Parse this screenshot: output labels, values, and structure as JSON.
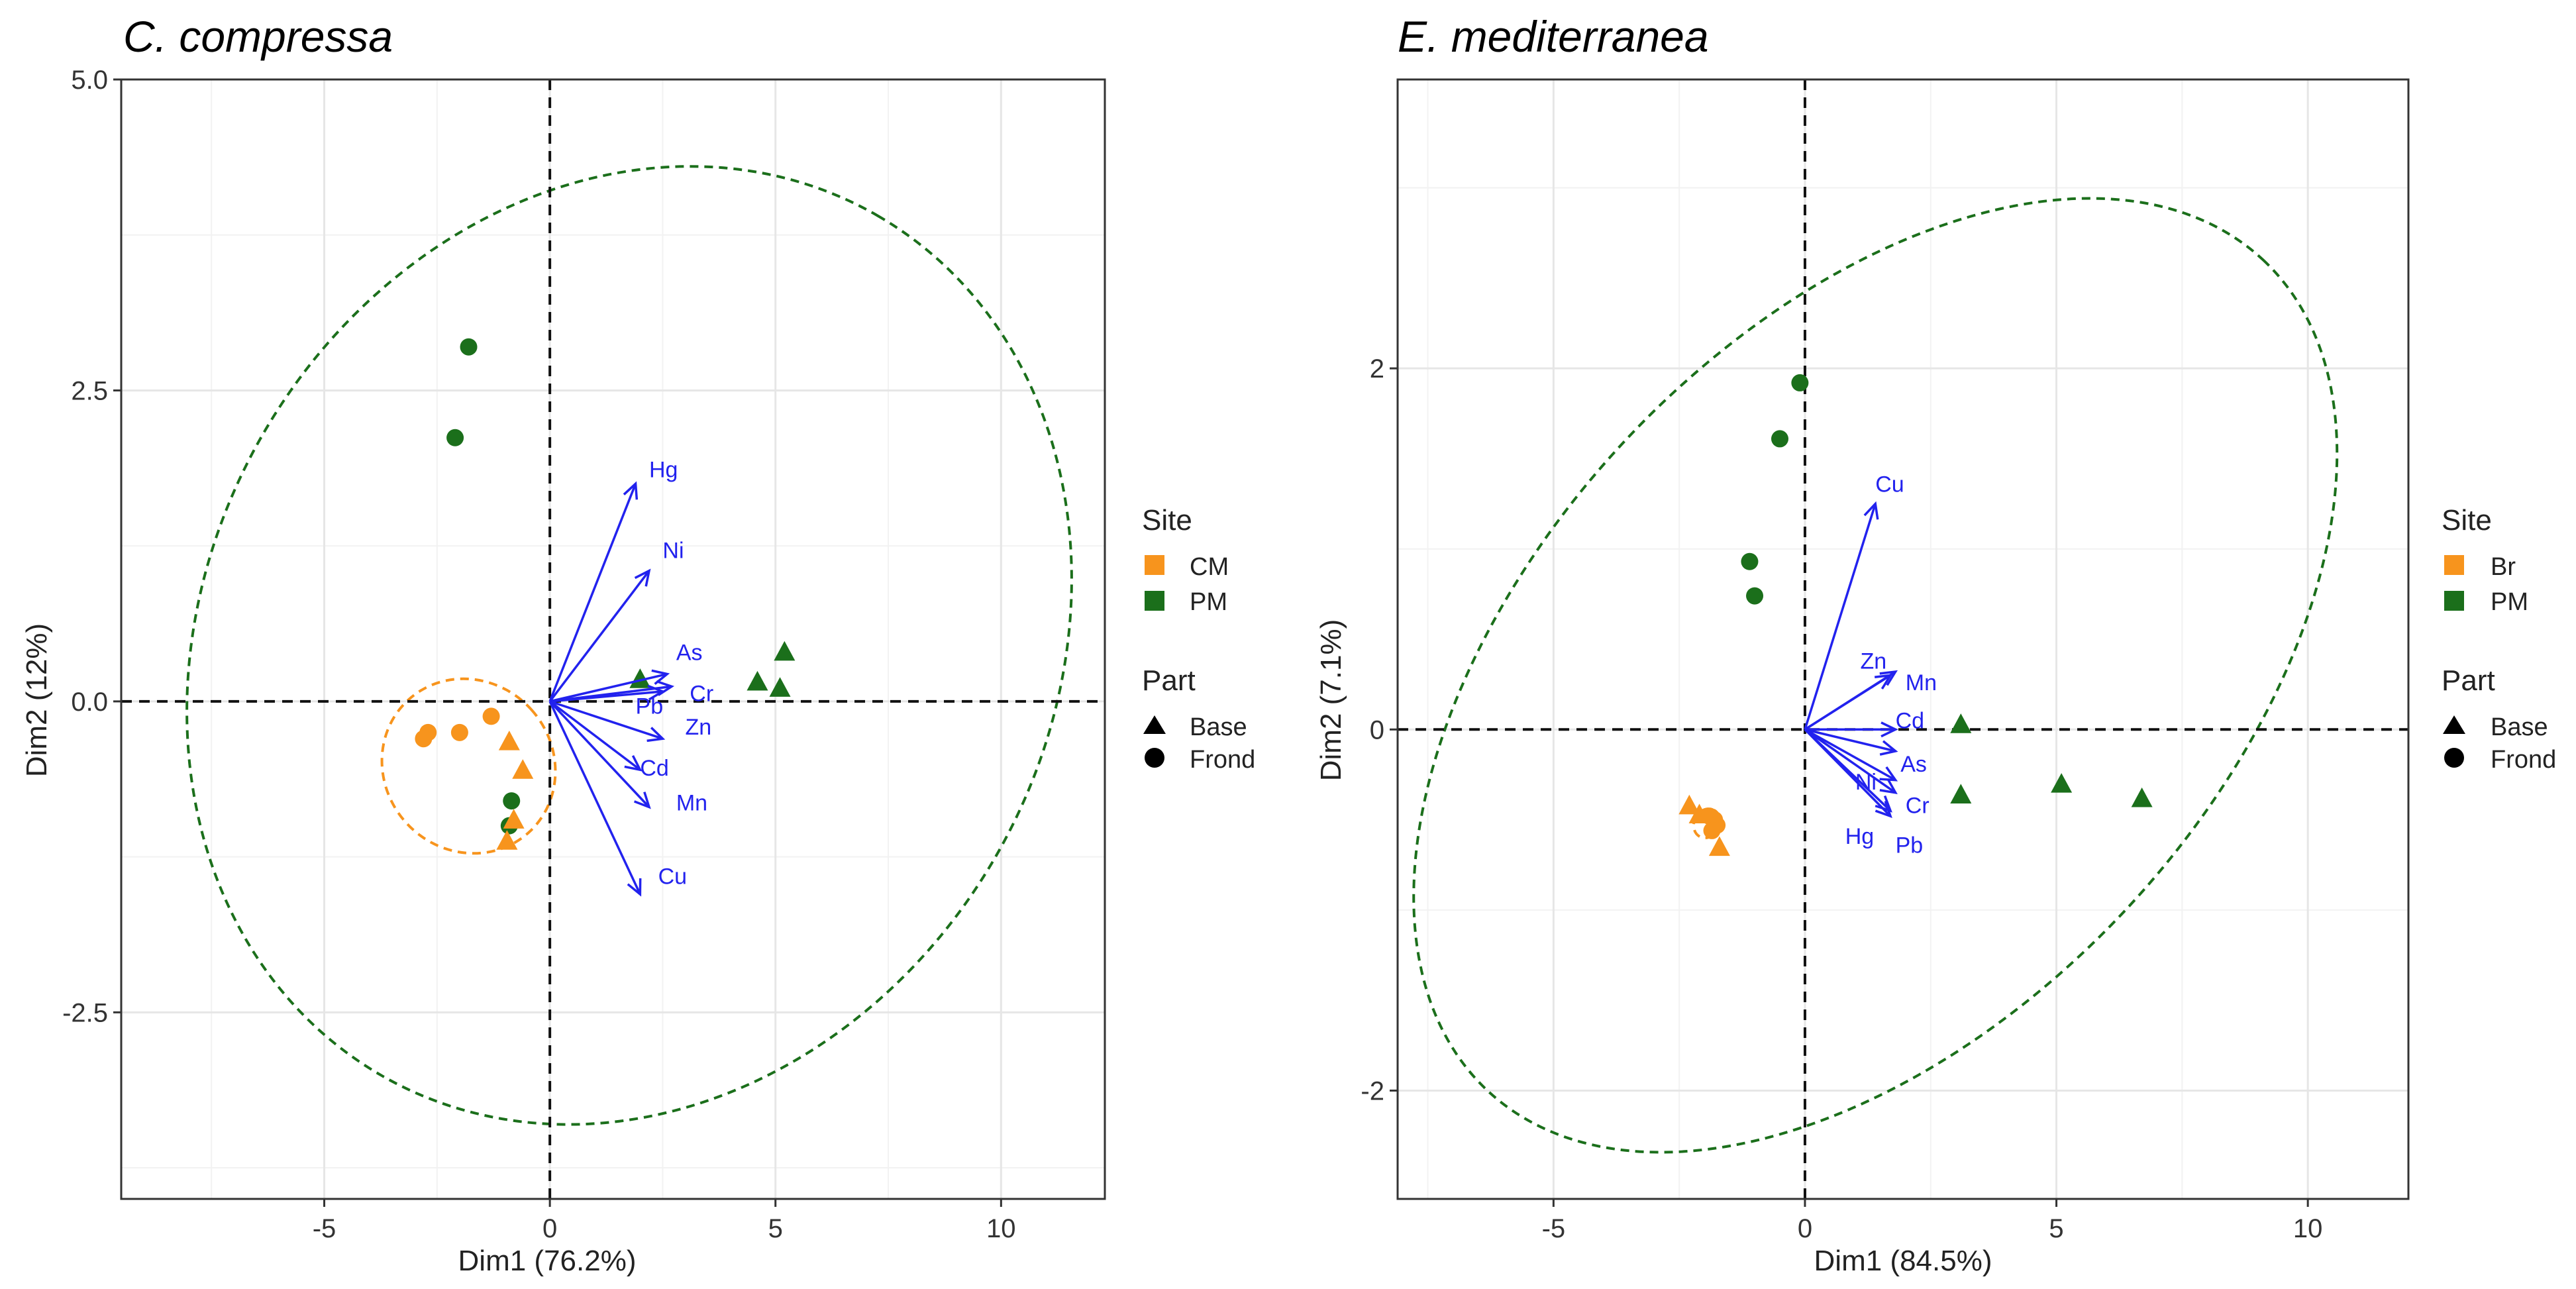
{
  "chart_data": [
    {
      "type": "scatter",
      "subtype": "pca-biplot",
      "title": "C. compressa",
      "xlabel": "Dim1 (76.2%)",
      "ylabel": "Dim2 (12%)",
      "xlim": [
        -9.5,
        12.3
      ],
      "ylim": [
        -4.0,
        5.0
      ],
      "xticks": [
        -5,
        0,
        5,
        10
      ],
      "xtick_labels": [
        "-5",
        "0",
        "5",
        "10"
      ],
      "yticks": [
        -2.5,
        0.0,
        2.5,
        5.0
      ],
      "ytick_labels": [
        "-2.5",
        "0.0",
        "2.5",
        "5.0"
      ],
      "xminor": [
        -7.5,
        -2.5,
        2.5,
        7.5
      ],
      "yminor": [
        -3.75,
        -1.25,
        1.25,
        3.75
      ],
      "grid": true,
      "legend": {
        "site_title": "Site",
        "site_items": [
          {
            "label": "CM",
            "color": "#F7941D"
          },
          {
            "label": "PM",
            "color": "#1B6F1B"
          }
        ],
        "part_title": "Part",
        "part_items": [
          {
            "label": "Base",
            "shape": "triangle"
          },
          {
            "label": "Frond",
            "shape": "circle"
          }
        ]
      },
      "points": [
        {
          "x": -1.8,
          "y": 2.85,
          "site": "PM",
          "part": "Frond"
        },
        {
          "x": -2.1,
          "y": 2.12,
          "site": "PM",
          "part": "Frond"
        },
        {
          "x": -0.85,
          "y": -0.8,
          "site": "PM",
          "part": "Frond"
        },
        {
          "x": -0.9,
          "y": -1.0,
          "site": "PM",
          "part": "Frond"
        },
        {
          "x": 2.0,
          "y": 0.18,
          "site": "PM",
          "part": "Base"
        },
        {
          "x": 4.6,
          "y": 0.16,
          "site": "PM",
          "part": "Base"
        },
        {
          "x": 5.2,
          "y": 0.4,
          "site": "PM",
          "part": "Base"
        },
        {
          "x": 5.1,
          "y": 0.11,
          "site": "PM",
          "part": "Base"
        },
        {
          "x": -2.7,
          "y": -0.25,
          "site": "CM",
          "part": "Frond"
        },
        {
          "x": -2.8,
          "y": -0.3,
          "site": "CM",
          "part": "Frond"
        },
        {
          "x": -2.0,
          "y": -0.25,
          "site": "CM",
          "part": "Frond"
        },
        {
          "x": -1.3,
          "y": -0.12,
          "site": "CM",
          "part": "Frond"
        },
        {
          "x": -0.9,
          "y": -0.32,
          "site": "CM",
          "part": "Base"
        },
        {
          "x": -0.6,
          "y": -0.55,
          "site": "CM",
          "part": "Base"
        },
        {
          "x": -0.95,
          "y": -1.12,
          "site": "CM",
          "part": "Base"
        },
        {
          "x": -0.8,
          "y": -0.95,
          "site": "CM",
          "part": "Base"
        }
      ],
      "arrows": [
        {
          "label": "Hg",
          "x": 1.9,
          "y": 1.75,
          "lx": 2.2,
          "ly": 1.85
        },
        {
          "label": "Ni",
          "x": 2.2,
          "y": 1.05,
          "lx": 2.5,
          "ly": 1.2
        },
        {
          "label": "As",
          "x": 2.6,
          "y": 0.22,
          "lx": 2.8,
          "ly": 0.38
        },
        {
          "label": "Cr",
          "x": 2.7,
          "y": 0.12,
          "lx": 3.1,
          "ly": 0.05
        },
        {
          "label": "Pb",
          "x": 2.5,
          "y": 0.08,
          "lx": 1.9,
          "ly": -0.05
        },
        {
          "label": "Zn",
          "x": 2.5,
          "y": -0.3,
          "lx": 3.0,
          "ly": -0.22
        },
        {
          "label": "Cd",
          "x": 2.0,
          "y": -0.55,
          "lx": 2.0,
          "ly": -0.55
        },
        {
          "label": "Mn",
          "x": 2.2,
          "y": -0.85,
          "lx": 2.8,
          "ly": -0.83
        },
        {
          "label": "Cu",
          "x": 2.0,
          "y": -1.55,
          "lx": 2.4,
          "ly": -1.42
        }
      ],
      "ellipses": [
        {
          "site": "PM",
          "cx": 1.76,
          "cy": 0.45,
          "rx": 11.0,
          "ry": 3.4,
          "angle": -60
        },
        {
          "site": "CM",
          "cx": -1.8,
          "cy": -0.52,
          "rx": 1.87,
          "ry": 0.72,
          "angle": -42
        }
      ]
    },
    {
      "type": "scatter",
      "subtype": "pca-biplot",
      "title": "E. mediterranea",
      "xlabel": "Dim1 (84.5%)",
      "ylabel": "Dim2 (7.1%)",
      "xlim": [
        -8.1,
        12.0
      ],
      "ylim": [
        -2.6,
        3.6
      ],
      "xticks": [
        -5,
        0,
        5,
        10
      ],
      "xtick_labels": [
        "-5",
        "0",
        "5",
        "10"
      ],
      "yticks": [
        -2,
        0,
        2
      ],
      "ytick_labels": [
        "-2",
        "0",
        "2"
      ],
      "xminor": [
        -7.5,
        -2.5,
        2.5,
        7.5
      ],
      "yminor": [
        -1,
        1,
        3
      ],
      "grid": true,
      "legend": {
        "site_title": "Site",
        "site_items": [
          {
            "label": "Br",
            "color": "#F7941D"
          },
          {
            "label": "PM",
            "color": "#1B6F1B"
          }
        ],
        "part_title": "Part",
        "part_items": [
          {
            "label": "Base",
            "shape": "triangle"
          },
          {
            "label": "Frond",
            "shape": "circle"
          }
        ]
      },
      "points": [
        {
          "x": -0.1,
          "y": 1.92,
          "site": "PM",
          "part": "Frond"
        },
        {
          "x": -0.5,
          "y": 1.61,
          "site": "PM",
          "part": "Frond"
        },
        {
          "x": -1.1,
          "y": 0.93,
          "site": "PM",
          "part": "Frond"
        },
        {
          "x": -1.0,
          "y": 0.74,
          "site": "PM",
          "part": "Frond"
        },
        {
          "x": 3.1,
          "y": 0.03,
          "site": "PM",
          "part": "Base"
        },
        {
          "x": 3.1,
          "y": -0.36,
          "site": "PM",
          "part": "Base"
        },
        {
          "x": 5.1,
          "y": -0.3,
          "site": "PM",
          "part": "Base"
        },
        {
          "x": 6.7,
          "y": -0.38,
          "site": "PM",
          "part": "Base"
        },
        {
          "x": -2.3,
          "y": -0.42,
          "site": "Br",
          "part": "Base"
        },
        {
          "x": -2.1,
          "y": -0.47,
          "site": "Br",
          "part": "Base"
        },
        {
          "x": -1.7,
          "y": -0.65,
          "site": "Br",
          "part": "Base"
        },
        {
          "x": -1.9,
          "y": -0.48,
          "site": "Br",
          "part": "Frond"
        },
        {
          "x": -1.8,
          "y": -0.5,
          "site": "Br",
          "part": "Frond"
        },
        {
          "x": -1.75,
          "y": -0.53,
          "site": "Br",
          "part": "Frond"
        },
        {
          "x": -1.85,
          "y": -0.56,
          "site": "Br",
          "part": "Frond"
        }
      ],
      "arrows": [
        {
          "label": "Cu",
          "x": 1.4,
          "y": 1.25,
          "lx": 1.4,
          "ly": 1.35
        },
        {
          "label": "Zn",
          "x": 1.7,
          "y": 0.3,
          "lx": 1.1,
          "ly": 0.37
        },
        {
          "label": "Mn",
          "x": 1.8,
          "y": 0.32,
          "lx": 2.0,
          "ly": 0.25
        },
        {
          "label": "Cd",
          "x": 1.8,
          "y": 0.0,
          "lx": 1.8,
          "ly": 0.04
        },
        {
          "label": "As",
          "x": 1.8,
          "y": -0.12,
          "lx": 1.9,
          "ly": -0.2
        },
        {
          "label": "Ni",
          "x": 1.8,
          "y": -0.28,
          "lx": 1.0,
          "ly": -0.3
        },
        {
          "label": "Cr",
          "x": 1.8,
          "y": -0.35,
          "lx": 2.0,
          "ly": -0.43
        },
        {
          "label": "Hg",
          "x": 1.7,
          "y": -0.45,
          "lx": 0.8,
          "ly": -0.6
        },
        {
          "label": "Pb",
          "x": 1.7,
          "y": -0.48,
          "lx": 1.8,
          "ly": -0.65
        }
      ],
      "ellipses": [
        {
          "site": "PM",
          "cx": 1.4,
          "cy": 0.3,
          "rx": 11.3,
          "ry": 1.9,
          "angle": -47
        },
        {
          "site": "Br",
          "cx": -1.95,
          "cy": -0.52,
          "rx": 0.3,
          "ry": 0.07,
          "angle": -62
        }
      ]
    }
  ]
}
